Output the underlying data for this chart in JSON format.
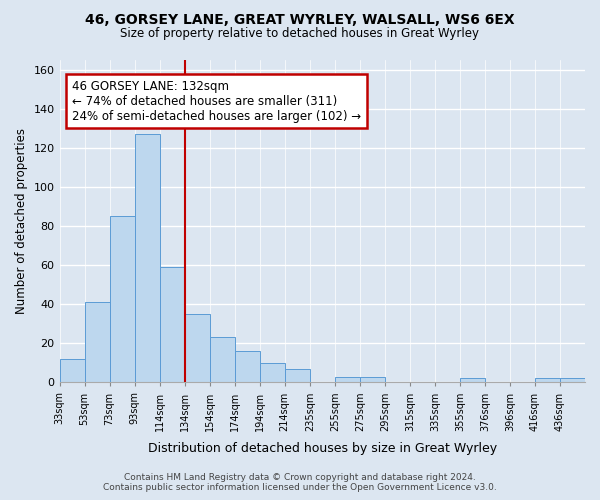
{
  "title": "46, GORSEY LANE, GREAT WYRLEY, WALSALL, WS6 6EX",
  "subtitle": "Size of property relative to detached houses in Great Wyrley",
  "xlabel": "Distribution of detached houses by size in Great Wyrley",
  "ylabel": "Number of detached properties",
  "bin_labels": [
    "33sqm",
    "53sqm",
    "73sqm",
    "93sqm",
    "114sqm",
    "134sqm",
    "154sqm",
    "174sqm",
    "194sqm",
    "214sqm",
    "235sqm",
    "255sqm",
    "275sqm",
    "295sqm",
    "315sqm",
    "335sqm",
    "355sqm",
    "376sqm",
    "396sqm",
    "416sqm",
    "436sqm"
  ],
  "bar_heights": [
    12,
    41,
    85,
    127,
    59,
    35,
    23,
    16,
    10,
    7,
    0,
    3,
    3,
    0,
    0,
    0,
    2,
    0,
    0,
    2,
    2
  ],
  "bar_color": "#bdd7ee",
  "bar_edge_color": "#5b9bd5",
  "vline_x_index": 5,
  "vline_color": "#c00000",
  "annotation_title": "46 GORSEY LANE: 132sqm",
  "annotation_line1": "← 74% of detached houses are smaller (311)",
  "annotation_line2": "24% of semi-detached houses are larger (102) →",
  "annotation_box_color": "#ffffff",
  "annotation_box_edge": "#c00000",
  "ylim": [
    0,
    165
  ],
  "yticks": [
    0,
    20,
    40,
    60,
    80,
    100,
    120,
    140,
    160
  ],
  "footer1": "Contains HM Land Registry data © Crown copyright and database right 2024.",
  "footer2": "Contains public sector information licensed under the Open Government Licence v3.0.",
  "background_color": "#dce6f1",
  "plot_bg_color": "#dce6f1",
  "grid_color": "#ffffff"
}
